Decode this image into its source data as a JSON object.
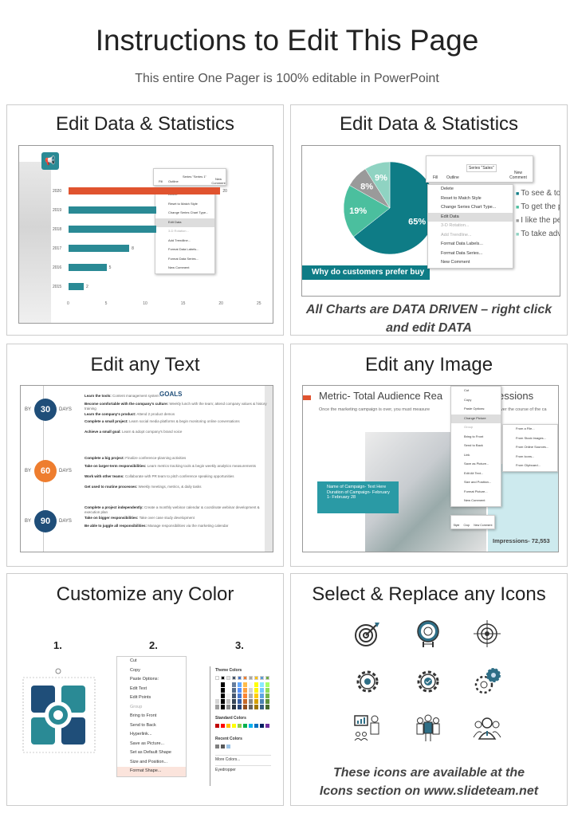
{
  "header": {
    "title": "Instructions to Edit This Page",
    "subtitle": "This entire One Pager is 100% editable in PowerPoint"
  },
  "colors": {
    "teal": "#2a8a95",
    "orange_red": "#e0532f",
    "navy": "#1f4e79",
    "orange": "#ee7d2e",
    "pie_dark": "#0e7c86",
    "pie_green": "#4bbf9e",
    "pie_grey": "#9a9a9a",
    "pie_light": "#8fd3c2"
  },
  "panels": [
    {
      "title": "Edit Data & Statistics",
      "toolbar": {
        "fill": "Fill",
        "outline": "Outline",
        "series": "Series \"Series 1\"",
        "comment": "New Comment"
      },
      "chart_data": {
        "type": "bar",
        "orientation": "horizontal",
        "categories": [
          "2020",
          "2019",
          "2018",
          "2017",
          "2016",
          "2015"
        ],
        "values": [
          20,
          null,
          null,
          8,
          5,
          2
        ],
        "value_labels": [
          "20",
          "",
          "",
          "8",
          "5",
          "2"
        ],
        "xlim": [
          0,
          25
        ],
        "xticks": [
          "0",
          "5",
          "10",
          "15",
          "20",
          "25"
        ],
        "highlight": "2020"
      },
      "menu": [
        "Delete",
        "Reset to Match Style",
        "Change Series Chart Type...",
        "Edit Data",
        "3-D Rotation...",
        "Add Trendline...",
        "Format Data Labels...",
        "Format Data Series...",
        "New Comment"
      ]
    },
    {
      "title": "Edit Data & Statistics",
      "toolbar": {
        "fill": "Fill",
        "outline": "Outline",
        "series": "Series \"Sales\"",
        "comment": "New Comment"
      },
      "chart_data": {
        "type": "pie",
        "values": [
          65,
          19,
          8,
          9
        ],
        "labels": [
          "65%",
          "19%",
          "8%",
          "9%"
        ]
      },
      "legend": [
        "To see & tou",
        "To get the pr",
        "I like the per",
        "To take adva"
      ],
      "banner": "Why do customers prefer buy",
      "menu": [
        "Delete",
        "Reset to Match Style",
        "Change Series Chart Type...",
        "Edit Data",
        "3-D Rotation...",
        "Add Trendline...",
        "Format Data Labels...",
        "Format Data Series...",
        "New Comment"
      ],
      "caption_line1": "All Charts are DATA DRIVEN – right click",
      "caption_line2": "and edit DATA"
    },
    {
      "title": "Edit any Text",
      "goals": "GOALS",
      "by": "BY",
      "days": "DAYS",
      "milestones": [
        {
          "number": "30",
          "items": [
            [
              "Learn the tools:",
              "Content management system"
            ],
            [
              "Become comfortable with the company's culture:",
              "Weekly lunch with the team; attend company values & history training"
            ],
            [
              "Learn the company's product:",
              "Attend 2 product demos"
            ],
            [
              "Complete a small project:",
              "Learn social media platforms & begin monitoring online conversations"
            ],
            [
              "Achieve a small goal:",
              "Learn & adopt company's brand voice"
            ]
          ]
        },
        {
          "number": "60",
          "items": [
            [
              "Complete a big project:",
              "Finalize conference-planning activities"
            ],
            [
              "Take on larger-term responsibilities:",
              "Learn metrics tracking tools & begin weekly analytics measurements"
            ],
            [
              "Work with other teams:",
              "Collaborate with PR team to pitch conference speaking opportunities"
            ],
            [
              "Get used to routine processes:",
              "Weekly meetings, metrics, & daily tasks"
            ]
          ]
        },
        {
          "number": "90",
          "items": [
            [
              "Complete a project independently:",
              "Create a monthly webinar calendar & coordinate webinar development & execution plan"
            ],
            [
              "Take on bigger responsibilities:",
              "Take over case study development"
            ],
            [
              "Be able to juggle all responsibilities:",
              "Manage responsibilities via the marketing calendar"
            ]
          ]
        }
      ]
    },
    {
      "title": "Edit any Image",
      "slide_title": "Metric- Total Audience Rea",
      "slide_title_end": "essions",
      "slide_text": "Once the marketing campaign is over, you must measure",
      "slide_text_end": "over the course of the ca",
      "callout": [
        "Name of Campaign- Text Here",
        "Duration of Campaign- February 1- February 28"
      ],
      "side_date": "ruary 1- February 28",
      "impressions": "Impressions- 72,553",
      "menu": [
        "Cut",
        "Copy",
        "Paste Options:",
        "Change Picture",
        "Group",
        "Bring to Front",
        "Send to Back",
        "Link",
        "Save as Picture...",
        "Edit Alt Text...",
        "Size and Position...",
        "Format Picture...",
        "New Comment"
      ],
      "submenu": [
        "From a File...",
        "From Stock Images...",
        "From Online Sources...",
        "From Icons...",
        "From Clipboard..."
      ],
      "mini": [
        "Style",
        "Crop",
        "New Comment"
      ]
    },
    {
      "title": "Customize any Color",
      "steps": [
        "1.",
        "2.",
        "3."
      ],
      "menu": [
        "Cut",
        "Copy",
        "Paste Options:",
        "Edit Text",
        "Edit Points",
        "Group",
        "Bring to Front",
        "Send to Back",
        "Hyperlink...",
        "Save as Picture...",
        "Set as Default Shape",
        "Size and Position...",
        "Format Shape..."
      ],
      "palette": {
        "theme": "Theme Colors",
        "standard": "Standard Colors",
        "recent": "Recent Colors",
        "more": "More Colors...",
        "eyedropper": "Eyedropper",
        "theme_colors": [
          "#ffffff",
          "#000000",
          "#e7e6e6",
          "#44546a",
          "#4472c4",
          "#ed7d31",
          "#a5a5a5",
          "#ffc000",
          "#5b9bd5",
          "#70ad47"
        ],
        "standard_colors": [
          "#c00000",
          "#ff0000",
          "#ffc000",
          "#ffff00",
          "#92d050",
          "#00b050",
          "#00b0f0",
          "#0070c0",
          "#002060",
          "#7030a0"
        ],
        "recent_colors": [
          "#7f7f7f",
          "#595959",
          "#9dc3e6"
        ]
      }
    },
    {
      "title": "Select & Replace any Icons",
      "icons": [
        "target-arrow-icon",
        "archery-target-icon",
        "crosshair-icon",
        "gear-icon",
        "gear-check-icon",
        "gears-icon",
        "presentation-icon",
        "team-icon",
        "group-icon"
      ],
      "caption_line1": "These icons are available at the",
      "caption_line2": "Icons section on www.slideteam.net"
    }
  ]
}
